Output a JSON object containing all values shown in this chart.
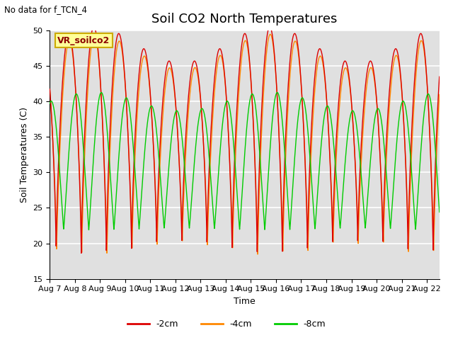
{
  "title": "Soil CO2 North Temperatures",
  "top_left_text": "No data for f_TCN_4",
  "ylabel": "Soil Temperatures (C)",
  "xlabel": "Time",
  "ylim": [
    15,
    50
  ],
  "x_tick_labels": [
    "Aug 7",
    "Aug 8",
    "Aug 9",
    "Aug 10",
    "Aug 11",
    "Aug 12",
    "Aug 13",
    "Aug 14",
    "Aug 15",
    "Aug 16",
    "Aug 17",
    "Aug 18",
    "Aug 19",
    "Aug 20",
    "Aug 21",
    "Aug 22"
  ],
  "legend_box_label": "VR_soilco2",
  "legend_entries": [
    "-2cm",
    "-4cm",
    "-8cm"
  ],
  "line_colors": [
    "#dd0000",
    "#ff8800",
    "#00cc00"
  ],
  "bg_color": "#e0e0e0",
  "fig_bg": "#ffffff",
  "title_fontsize": 13,
  "label_fontsize": 9,
  "tick_fontsize": 8
}
